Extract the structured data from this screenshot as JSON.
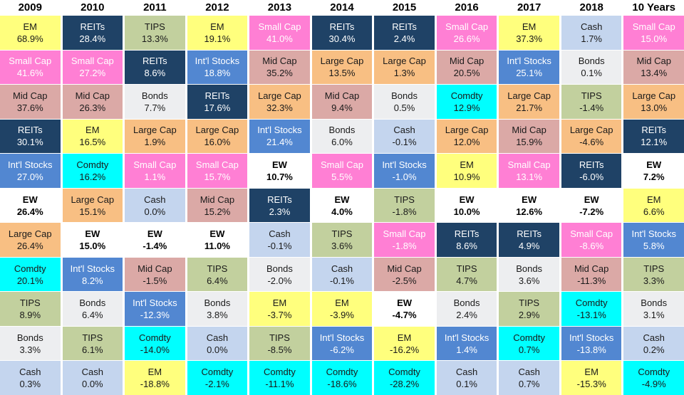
{
  "chart_data": {
    "type": "table",
    "description": "Periodic table of annual asset class returns, ranked best to worst within each year",
    "layout": {
      "columns_count": 11,
      "rows_per_column": 11,
      "legend": "none",
      "grid": "colored cells with white gaps"
    },
    "asset_styles": {
      "EM": {
        "bg": "#FFFF7D",
        "fg": "#1a1a1a",
        "bold": false
      },
      "Small Cap": {
        "bg": "#FF7FD4",
        "fg": "#ffffff",
        "bold": false
      },
      "Mid Cap": {
        "bg": "#DBA9A6",
        "fg": "#1a1a1a",
        "bold": false
      },
      "REITs": {
        "bg": "#1F4266",
        "fg": "#ffffff",
        "bold": false
      },
      "Int'l Stocks": {
        "bg": "#5287D1",
        "fg": "#ffffff",
        "bold": false
      },
      "EW": {
        "bg": "#FFFFFF",
        "fg": "#000000",
        "bold": true
      },
      "Large Cap": {
        "bg": "#F8BF83",
        "fg": "#1a1a1a",
        "bold": false
      },
      "Comdty": {
        "bg": "#00FFFF",
        "fg": "#1a1a1a",
        "bold": false
      },
      "TIPS": {
        "bg": "#C2D09E",
        "fg": "#1a1a1a",
        "bold": false
      },
      "Bonds": {
        "bg": "#EDEEF0",
        "fg": "#1a1a1a",
        "bold": false
      },
      "Cash": {
        "bg": "#C4D5EE",
        "fg": "#1a1a1a",
        "bold": false
      }
    },
    "columns": [
      {
        "year": "2009",
        "cells": [
          {
            "asset": "EM",
            "return_pct": 68.9
          },
          {
            "asset": "Small Cap",
            "return_pct": 41.6
          },
          {
            "asset": "Mid Cap",
            "return_pct": 37.6
          },
          {
            "asset": "REITs",
            "return_pct": 30.1
          },
          {
            "asset": "Int'l Stocks",
            "return_pct": 27.0
          },
          {
            "asset": "EW",
            "return_pct": 26.4
          },
          {
            "asset": "Large Cap",
            "return_pct": 26.4
          },
          {
            "asset": "Comdty",
            "return_pct": 20.1
          },
          {
            "asset": "TIPS",
            "return_pct": 8.9
          },
          {
            "asset": "Bonds",
            "return_pct": 3.3
          },
          {
            "asset": "Cash",
            "return_pct": 0.3
          }
        ]
      },
      {
        "year": "2010",
        "cells": [
          {
            "asset": "REITs",
            "return_pct": 28.4
          },
          {
            "asset": "Small Cap",
            "return_pct": 27.2
          },
          {
            "asset": "Mid Cap",
            "return_pct": 26.3
          },
          {
            "asset": "EM",
            "return_pct": 16.5
          },
          {
            "asset": "Comdty",
            "return_pct": 16.2
          },
          {
            "asset": "Large Cap",
            "return_pct": 15.1
          },
          {
            "asset": "EW",
            "return_pct": 15.0
          },
          {
            "asset": "Int'l Stocks",
            "return_pct": 8.2
          },
          {
            "asset": "Bonds",
            "return_pct": 6.4
          },
          {
            "asset": "TIPS",
            "return_pct": 6.1
          },
          {
            "asset": "Cash",
            "return_pct": 0.0
          }
        ]
      },
      {
        "year": "2011",
        "cells": [
          {
            "asset": "TIPS",
            "return_pct": 13.3
          },
          {
            "asset": "REITs",
            "return_pct": 8.6
          },
          {
            "asset": "Bonds",
            "return_pct": 7.7
          },
          {
            "asset": "Large Cap",
            "return_pct": 1.9
          },
          {
            "asset": "Small Cap",
            "return_pct": 1.1
          },
          {
            "asset": "Cash",
            "return_pct": 0.0
          },
          {
            "asset": "EW",
            "return_pct": -1.4
          },
          {
            "asset": "Mid Cap",
            "return_pct": -1.5
          },
          {
            "asset": "Int'l Stocks",
            "return_pct": -12.3
          },
          {
            "asset": "Comdty",
            "return_pct": -14.0
          },
          {
            "asset": "EM",
            "return_pct": -18.8
          }
        ]
      },
      {
        "year": "2012",
        "cells": [
          {
            "asset": "EM",
            "return_pct": 19.1
          },
          {
            "asset": "Int'l Stocks",
            "return_pct": 18.8
          },
          {
            "asset": "REITs",
            "return_pct": 17.6
          },
          {
            "asset": "Large Cap",
            "return_pct": 16.0
          },
          {
            "asset": "Small Cap",
            "return_pct": 15.7
          },
          {
            "asset": "Mid Cap",
            "return_pct": 15.2
          },
          {
            "asset": "EW",
            "return_pct": 11.0
          },
          {
            "asset": "TIPS",
            "return_pct": 6.4
          },
          {
            "asset": "Bonds",
            "return_pct": 3.8
          },
          {
            "asset": "Cash",
            "return_pct": 0.0
          },
          {
            "asset": "Comdty",
            "return_pct": -2.1
          }
        ]
      },
      {
        "year": "2013",
        "cells": [
          {
            "asset": "Small Cap",
            "return_pct": 41.0
          },
          {
            "asset": "Mid Cap",
            "return_pct": 35.2
          },
          {
            "asset": "Large Cap",
            "return_pct": 32.3
          },
          {
            "asset": "Int'l Stocks",
            "return_pct": 21.4
          },
          {
            "asset": "EW",
            "return_pct": 10.7
          },
          {
            "asset": "REITs",
            "return_pct": 2.3
          },
          {
            "asset": "Cash",
            "return_pct": -0.1
          },
          {
            "asset": "Bonds",
            "return_pct": -2.0
          },
          {
            "asset": "EM",
            "return_pct": -3.7
          },
          {
            "asset": "TIPS",
            "return_pct": -8.5
          },
          {
            "asset": "Comdty",
            "return_pct": -11.1
          }
        ]
      },
      {
        "year": "2014",
        "cells": [
          {
            "asset": "REITs",
            "return_pct": 30.4
          },
          {
            "asset": "Large Cap",
            "return_pct": 13.5
          },
          {
            "asset": "Mid Cap",
            "return_pct": 9.4
          },
          {
            "asset": "Bonds",
            "return_pct": 6.0
          },
          {
            "asset": "Small Cap",
            "return_pct": 5.5
          },
          {
            "asset": "EW",
            "return_pct": 4.0
          },
          {
            "asset": "TIPS",
            "return_pct": 3.6
          },
          {
            "asset": "Cash",
            "return_pct": -0.1
          },
          {
            "asset": "EM",
            "return_pct": -3.9
          },
          {
            "asset": "Int'l Stocks",
            "return_pct": -6.2
          },
          {
            "asset": "Comdty",
            "return_pct": -18.6
          }
        ]
      },
      {
        "year": "2015",
        "cells": [
          {
            "asset": "REITs",
            "return_pct": 2.4
          },
          {
            "asset": "Large Cap",
            "return_pct": 1.3
          },
          {
            "asset": "Bonds",
            "return_pct": 0.5
          },
          {
            "asset": "Cash",
            "return_pct": -0.1
          },
          {
            "asset": "Int'l Stocks",
            "return_pct": -1.0
          },
          {
            "asset": "TIPS",
            "return_pct": -1.8
          },
          {
            "asset": "Small Cap",
            "return_pct": -1.8
          },
          {
            "asset": "Mid Cap",
            "return_pct": -2.5
          },
          {
            "asset": "EW",
            "return_pct": -4.7
          },
          {
            "asset": "EM",
            "return_pct": -16.2
          },
          {
            "asset": "Comdty",
            "return_pct": -28.2
          }
        ]
      },
      {
        "year": "2016",
        "cells": [
          {
            "asset": "Small Cap",
            "return_pct": 26.6
          },
          {
            "asset": "Mid Cap",
            "return_pct": 20.5
          },
          {
            "asset": "Comdty",
            "return_pct": 12.9
          },
          {
            "asset": "Large Cap",
            "return_pct": 12.0
          },
          {
            "asset": "EM",
            "return_pct": 10.9
          },
          {
            "asset": "EW",
            "return_pct": 10.0
          },
          {
            "asset": "REITs",
            "return_pct": 8.6
          },
          {
            "asset": "TIPS",
            "return_pct": 4.7
          },
          {
            "asset": "Bonds",
            "return_pct": 2.4
          },
          {
            "asset": "Int'l Stocks",
            "return_pct": 1.4
          },
          {
            "asset": "Cash",
            "return_pct": 0.1
          }
        ]
      },
      {
        "year": "2017",
        "cells": [
          {
            "asset": "EM",
            "return_pct": 37.3
          },
          {
            "asset": "Int'l Stocks",
            "return_pct": 25.1
          },
          {
            "asset": "Large Cap",
            "return_pct": 21.7
          },
          {
            "asset": "Mid Cap",
            "return_pct": 15.9
          },
          {
            "asset": "Small Cap",
            "return_pct": 13.1
          },
          {
            "asset": "EW",
            "return_pct": 12.6
          },
          {
            "asset": "REITs",
            "return_pct": 4.9
          },
          {
            "asset": "Bonds",
            "return_pct": 3.6
          },
          {
            "asset": "TIPS",
            "return_pct": 2.9
          },
          {
            "asset": "Comdty",
            "return_pct": 0.7
          },
          {
            "asset": "Cash",
            "return_pct": 0.7
          }
        ]
      },
      {
        "year": "2018",
        "cells": [
          {
            "asset": "Cash",
            "return_pct": 1.7
          },
          {
            "asset": "Bonds",
            "return_pct": 0.1
          },
          {
            "asset": "TIPS",
            "return_pct": -1.4
          },
          {
            "asset": "Large Cap",
            "return_pct": -4.6
          },
          {
            "asset": "REITs",
            "return_pct": -6.0
          },
          {
            "asset": "EW",
            "return_pct": -7.2
          },
          {
            "asset": "Small Cap",
            "return_pct": -8.6
          },
          {
            "asset": "Mid Cap",
            "return_pct": -11.3
          },
          {
            "asset": "Comdty",
            "return_pct": -13.1
          },
          {
            "asset": "Int'l Stocks",
            "return_pct": -13.8
          },
          {
            "asset": "EM",
            "return_pct": -15.3
          }
        ]
      },
      {
        "year": "10 Years",
        "cells": [
          {
            "asset": "Small Cap",
            "return_pct": 15.0
          },
          {
            "asset": "Mid Cap",
            "return_pct": 13.4
          },
          {
            "asset": "Large Cap",
            "return_pct": 13.0
          },
          {
            "asset": "REITs",
            "return_pct": 12.1
          },
          {
            "asset": "EW",
            "return_pct": 7.2
          },
          {
            "asset": "EM",
            "return_pct": 6.6
          },
          {
            "asset": "Int'l Stocks",
            "return_pct": 5.8
          },
          {
            "asset": "TIPS",
            "return_pct": 3.3
          },
          {
            "asset": "Bonds",
            "return_pct": 3.1
          },
          {
            "asset": "Cash",
            "return_pct": 0.2
          },
          {
            "asset": "Comdty",
            "return_pct": -4.9
          }
        ]
      }
    ]
  }
}
